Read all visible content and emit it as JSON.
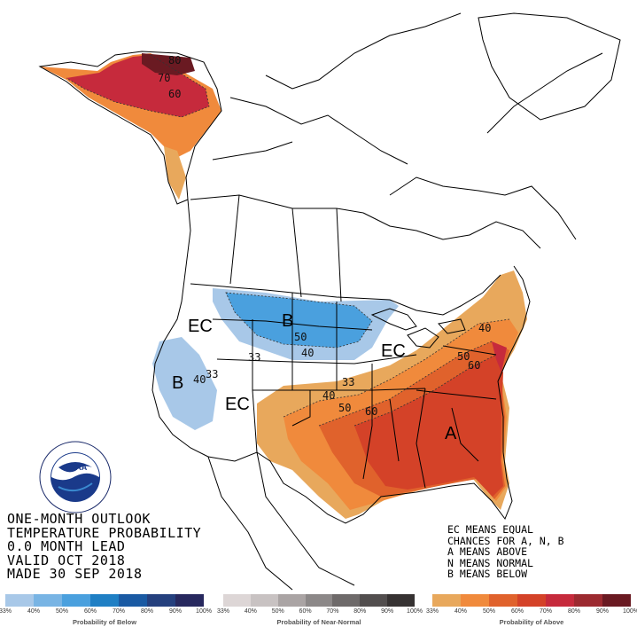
{
  "title_lines": [
    "ONE-MONTH OUTLOOK",
    "TEMPERATURE PROBABILITY",
    "0.0 MONTH LEAD",
    "VALID OCT 2018",
    "MADE 30 SEP 2018"
  ],
  "legend_lines": [
    "EC MEANS EQUAL",
    "CHANCES FOR A, N, B",
    "A MEANS ABOVE",
    "N MEANS NORMAL",
    "B MEANS BELOW"
  ],
  "map_labels": {
    "ec_west": "EC",
    "ec_southwest": "EC",
    "ec_greatlakes": "EC",
    "b_north": "B",
    "b_west": "B",
    "a_southeast": "A"
  },
  "contour_labels": {
    "ak_80": "80",
    "ak_70": "70",
    "ak_60": "60",
    "n_50": "50",
    "n_40": "40",
    "n_33": "33",
    "w_40": "40",
    "w_33": "33",
    "s_33": "33",
    "s_40": "40",
    "s_50": "50",
    "s_60": "60",
    "ne_40": "40",
    "ne_50": "50",
    "ne_60": "60"
  },
  "colorbars": {
    "below": {
      "caption": "Probability of Below",
      "ticks": [
        "33%",
        "40%",
        "50%",
        "60%",
        "70%",
        "80%",
        "90%",
        "100%"
      ],
      "colors": [
        "#a8c8e8",
        "#78b4e4",
        "#4aa0de",
        "#1f7fc4",
        "#1a5aa3",
        "#25407e",
        "#27285e"
      ]
    },
    "near_normal": {
      "caption": "Probability of Near-Normal",
      "ticks": [
        "33%",
        "40%",
        "50%",
        "60%",
        "70%",
        "80%",
        "90%",
        "100%"
      ],
      "colors": [
        "#ddd6d6",
        "#c8c2c2",
        "#aaa4a4",
        "#8c8888",
        "#6e6a6a",
        "#524e4e",
        "#363232"
      ]
    },
    "above": {
      "caption": "Probability of Above",
      "ticks": [
        "33%",
        "40%",
        "50%",
        "60%",
        "70%",
        "80%",
        "90%",
        "100%"
      ],
      "colors": [
        "#e8a85c",
        "#f08a3c",
        "#e0622c",
        "#d44228",
        "#c62a3c",
        "#9c2a30",
        "#6a1a22"
      ]
    }
  },
  "logo_text": "NOAA"
}
